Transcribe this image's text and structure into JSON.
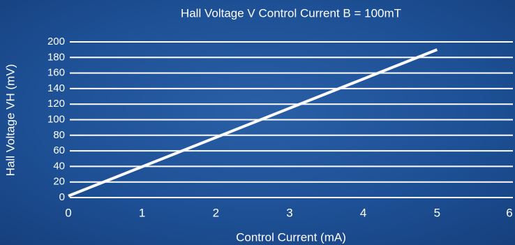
{
  "chart_data": {
    "type": "line",
    "title": "Hall Voltage V Control Current B = 100mT",
    "x_label": "Control Current (mA)",
    "y_label": "Hall Voltage VH (mV)",
    "x": [
      0,
      5
    ],
    "series": [
      {
        "color": "#ffffff",
        "values": [
          2,
          190
        ]
      }
    ],
    "xlim": [
      0,
      6
    ],
    "xticks": [
      0,
      1,
      2,
      3,
      4,
      5,
      6
    ],
    "ylim": [
      0,
      200
    ],
    "yticks": [
      0,
      20,
      40,
      60,
      80,
      100,
      120,
      140,
      160,
      180,
      200
    ],
    "grid": true
  }
}
